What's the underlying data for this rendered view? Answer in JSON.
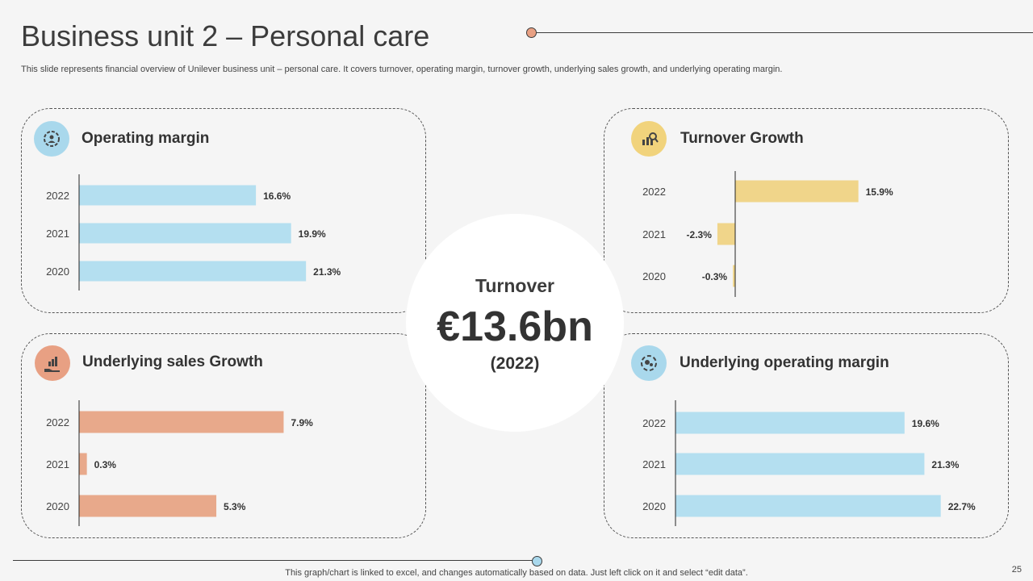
{
  "header": {
    "title": "Business unit 2 – Personal care",
    "subtitle": "This slide represents financial overview of Unilever business unit – personal care. It covers turnover,  operating margin, turnover growth, underlying sales growth, and underlying operating margin."
  },
  "center": {
    "label": "Turnover",
    "value": "€13.6bn",
    "year": "(2022)"
  },
  "colors": {
    "blue": "#b4dff0",
    "yellow": "#f0d58a",
    "salmon": "#e8a98b",
    "icon_blue": "#a9d8ec",
    "icon_yellow": "#f1d37c",
    "icon_salmon": "#e8a083"
  },
  "cards": {
    "operating_margin": {
      "title": "Operating margin",
      "icon": "gear-people-icon"
    },
    "turnover_growth": {
      "title": "Turnover Growth",
      "icon": "chart-magnifier-icon"
    },
    "sales_growth": {
      "title": "Underlying sales Growth",
      "icon": "hand-chart-icon"
    },
    "underlying_op_margin": {
      "title": "Underlying operating margin",
      "icon": "gears-cycle-icon"
    }
  },
  "chart_data": [
    {
      "id": "operating_margin",
      "type": "bar",
      "orientation": "horizontal",
      "title": "Operating margin",
      "categories": [
        "2022",
        "2021",
        "2020"
      ],
      "values": [
        16.6,
        19.9,
        21.3
      ],
      "labels": [
        "16.6%",
        "19.9%",
        "21.3%"
      ],
      "xlim": [
        0,
        25
      ],
      "color": "#b4dff0"
    },
    {
      "id": "turnover_growth",
      "type": "bar",
      "orientation": "horizontal",
      "title": "Turnover Growth",
      "categories": [
        "2022",
        "2021",
        "2020"
      ],
      "values": [
        15.9,
        -2.3,
        -0.3
      ],
      "labels": [
        "15.9%",
        "-2.3%",
        "-0.3%"
      ],
      "xlim": [
        -5,
        20
      ],
      "color": "#f0d58a"
    },
    {
      "id": "sales_growth",
      "type": "bar",
      "orientation": "horizontal",
      "title": "Underlying sales Growth",
      "categories": [
        "2022",
        "2021",
        "2020"
      ],
      "values": [
        7.9,
        0.3,
        5.3
      ],
      "labels": [
        "7.9%",
        "0.3%",
        "5.3%"
      ],
      "xlim": [
        0,
        12
      ],
      "color": "#e8a98b"
    },
    {
      "id": "underlying_op_margin",
      "type": "bar",
      "orientation": "horizontal",
      "title": "Underlying operating margin",
      "categories": [
        "2022",
        "2021",
        "2020"
      ],
      "values": [
        19.6,
        21.3,
        22.7
      ],
      "labels": [
        "19.6%",
        "21.3%",
        "22.7%"
      ],
      "xlim": [
        0,
        25
      ],
      "color": "#b4dff0"
    }
  ],
  "footer": {
    "note": "This graph/chart is linked to excel,  and changes automatically based on data. Just left click on it and select “edit data”.",
    "page_number": "25"
  }
}
